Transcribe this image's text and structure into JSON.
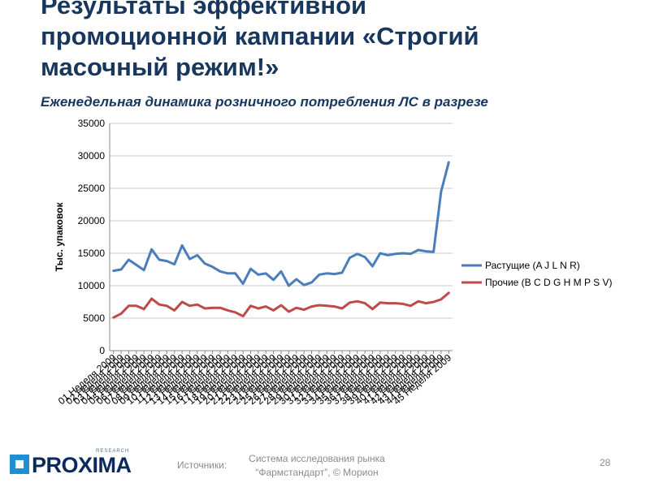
{
  "slide": {
    "title": "Результаты эффективной\nпромоционной кампании «Строгий\nмасочный режим!»",
    "subtitle": "Еженедельная динамика розничного потребления ЛС в разрезе",
    "sources_label": "Источники:",
    "source_line1": "Система исследования рынка",
    "source_line2": "“Фармстандарт”, © Морион",
    "page_number": "28",
    "logo_text": "PROXIMA",
    "logo_subtext": "RESEARCH"
  },
  "chart_data": {
    "type": "line",
    "ylabel": "Тыс. упаковок",
    "ylim": [
      0,
      35000
    ],
    "yticks": [
      0,
      5000,
      10000,
      15000,
      20000,
      25000,
      30000,
      35000
    ],
    "grid": "horizontal",
    "legend_position": "right",
    "categories": [
      "01 Неделя 2009",
      "02 Неделя 2009",
      "03 Неделя 2009",
      "04 Неделя 2009",
      "05 Неделя 2009",
      "06 Неделя 2009",
      "07 Неделя 2009",
      "08 Неделя 2009",
      "09 Неделя 2009",
      "10 Неделя 2009",
      "11 Неделя 2009",
      "12 Неделя 2009",
      "13 Неделя 2009",
      "14 Неделя 2009",
      "15 Неделя 2009",
      "16 Неделя 2009",
      "17 Неделя 2009",
      "18 Неделя 2009",
      "19 Неделя 2009",
      "20 Неделя 2009",
      "21 Неделя 2009",
      "22 Неделя 2009",
      "23 Неделя 2009",
      "24 Неделя 2009",
      "25 Неделя 2009",
      "26 Неделя 2009",
      "27 Неделя 2009",
      "28 Неделя 2009",
      "29 Неделя 2009",
      "30 Неделя 2009",
      "31 Неделя 2009",
      "32 Неделя 2009",
      "33 Неделя 2009",
      "34 Неделя 2009",
      "35 Неделя 2009",
      "36 Неделя 2009",
      "37 Неделя 2009",
      "38 Неделя 2009",
      "39 Неделя 2009",
      "40 Неделя 2009",
      "41 Неделя 2009",
      "42 Неделя 2009",
      "43 Неделя 2009",
      "44 Неделя 2009",
      "45 Неделя 2009"
    ],
    "series": [
      {
        "name": "Растущие (A J L N R)",
        "color": "#4a7ebb",
        "values": [
          12300,
          12500,
          14000,
          13200,
          12400,
          15600,
          14000,
          13800,
          13300,
          16200,
          14100,
          14700,
          13400,
          12900,
          12200,
          11900,
          11900,
          10300,
          12600,
          11700,
          11900,
          10900,
          12200,
          10000,
          11000,
          10100,
          10500,
          11700,
          11900,
          11800,
          12000,
          14300,
          14900,
          14400,
          13000,
          15000,
          14700,
          14900,
          15000,
          14900,
          15500,
          15300,
          15200,
          24500,
          29000
        ]
      },
      {
        "name": "Прочие (B C D G H M P S V)",
        "color": "#be4b48",
        "values": [
          5100,
          5700,
          6900,
          6900,
          6400,
          8000,
          7100,
          6900,
          6200,
          7500,
          6900,
          7100,
          6500,
          6600,
          6600,
          6200,
          5900,
          5300,
          6900,
          6500,
          6800,
          6200,
          7000,
          6000,
          6600,
          6300,
          6800,
          7000,
          6900,
          6800,
          6500,
          7400,
          7600,
          7300,
          6400,
          7400,
          7300,
          7300,
          7200,
          6900,
          7600,
          7300,
          7500,
          7900,
          8900
        ]
      }
    ]
  }
}
